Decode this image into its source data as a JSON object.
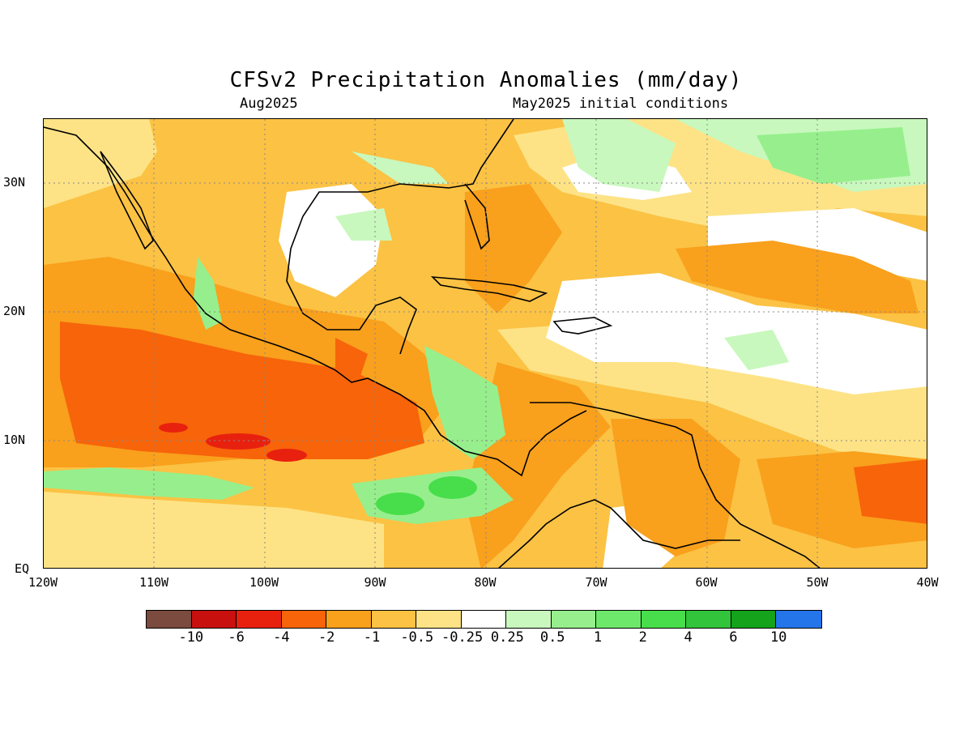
{
  "header": {
    "title": "CFSv2 Precipitation Anomalies (mm/day)",
    "valid_month": "Aug2025",
    "initial_conditions": "May2025 initial conditions"
  },
  "map": {
    "lat_labels": [
      "30N",
      "20N",
      "10N",
      "EQ"
    ],
    "lon_labels": [
      "120W",
      "110W",
      "100W",
      "90W",
      "80W",
      "70W",
      "60W",
      "50W",
      "40W"
    ],
    "domain": {
      "lon_range": [
        -120,
        -40
      ],
      "lat_range": [
        0,
        35
      ]
    },
    "gridlines": "dotted"
  },
  "colorbar": {
    "labels": [
      "-10",
      "-6",
      "-4",
      "-2",
      "-1",
      "-0.5",
      "-0.25",
      "0.25",
      "0.5",
      "1",
      "2",
      "4",
      "6",
      "10"
    ],
    "colors": [
      "#7a4b3e",
      "#c8100e",
      "#e8210f",
      "#f7640a",
      "#f9a01c",
      "#fbc244",
      "#fde386",
      "#ffffff",
      "#c8f8bd",
      "#96ef8c",
      "#6ee86a",
      "#48de4b",
      "#32c43a",
      "#14a31a",
      "#2474ea"
    ]
  }
}
